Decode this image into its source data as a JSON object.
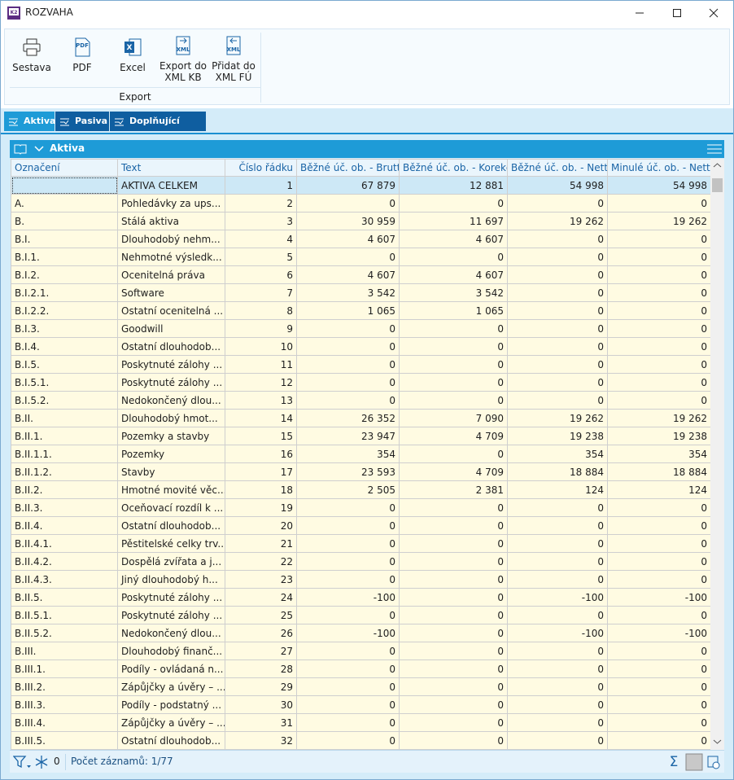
{
  "window": {
    "title": "ROZVAHA"
  },
  "toolbar": {
    "buttons": [
      [
        "Sestava"
      ],
      [
        "PDF"
      ],
      [
        "Excel"
      ],
      [
        "Export do",
        "XML KB"
      ],
      [
        "Přidat do",
        "XML FÚ"
      ]
    ],
    "group": "Export"
  },
  "tabs": [
    "Aktiva",
    "Pasiva",
    "Doplňující údaje"
  ],
  "panel": {
    "title": "Aktiva"
  },
  "table": {
    "columns": [
      "Označení",
      "Text",
      "Číslo řádku",
      "Běžné úč. ob. - Brutto",
      "Běžné úč. ob. - Korekce",
      "Běžné úč. ob. - Netto",
      "Minulé úč. ob. - Netto"
    ],
    "rows": [
      [
        "",
        "AKTIVA CELKEM",
        "1",
        "67 879",
        "12 881",
        "54 998",
        "54 998"
      ],
      [
        "A.",
        "Pohledávky za ups...",
        "2",
        "0",
        "0",
        "0",
        "0"
      ],
      [
        "B.",
        "Stálá aktiva",
        "3",
        "30 959",
        "11 697",
        "19 262",
        "19 262"
      ],
      [
        "B.I.",
        "Dlouhodobý nehm...",
        "4",
        "4 607",
        "4 607",
        "0",
        "0"
      ],
      [
        "B.I.1.",
        "Nehmotné výsledk...",
        "5",
        "0",
        "0",
        "0",
        "0"
      ],
      [
        "B.I.2.",
        "Ocenitelná práva",
        "6",
        "4 607",
        "4 607",
        "0",
        "0"
      ],
      [
        "B.I.2.1.",
        "Software",
        "7",
        "3 542",
        "3 542",
        "0",
        "0"
      ],
      [
        "B.I.2.2.",
        "Ostatní ocenitelná ...",
        "8",
        "1 065",
        "1 065",
        "0",
        "0"
      ],
      [
        "B.I.3.",
        "Goodwill",
        "9",
        "0",
        "0",
        "0",
        "0"
      ],
      [
        "B.I.4.",
        "Ostatní dlouhodob...",
        "10",
        "0",
        "0",
        "0",
        "0"
      ],
      [
        "B.I.5.",
        "Poskytnuté zálohy ...",
        "11",
        "0",
        "0",
        "0",
        "0"
      ],
      [
        "B.I.5.1.",
        "Poskytnuté zálohy ...",
        "12",
        "0",
        "0",
        "0",
        "0"
      ],
      [
        "B.I.5.2.",
        "Nedokončený dlou...",
        "13",
        "0",
        "0",
        "0",
        "0"
      ],
      [
        "B.II.",
        "Dlouhodobý hmot...",
        "14",
        "26 352",
        "7 090",
        "19 262",
        "19 262"
      ],
      [
        "B.II.1.",
        "Pozemky a stavby",
        "15",
        "23 947",
        "4 709",
        "19 238",
        "19 238"
      ],
      [
        "B.II.1.1.",
        "Pozemky",
        "16",
        "354",
        "0",
        "354",
        "354"
      ],
      [
        "B.II.1.2.",
        "Stavby",
        "17",
        "23 593",
        "4 709",
        "18 884",
        "18 884"
      ],
      [
        "B.II.2.",
        "Hmotné movité věc...",
        "18",
        "2 505",
        "2 381",
        "124",
        "124"
      ],
      [
        "B.II.3.",
        "Oceňovací rozdíl k ...",
        "19",
        "0",
        "0",
        "0",
        "0"
      ],
      [
        "B.II.4.",
        "Ostatní dlouhodob...",
        "20",
        "0",
        "0",
        "0",
        "0"
      ],
      [
        "B.II.4.1.",
        "Pěstitelské celky trv...",
        "21",
        "0",
        "0",
        "0",
        "0"
      ],
      [
        "B.II.4.2.",
        "Dospělá zvířata a j...",
        "22",
        "0",
        "0",
        "0",
        "0"
      ],
      [
        "B.II.4.3.",
        "Jiný dlouhodobý h...",
        "23",
        "0",
        "0",
        "0",
        "0"
      ],
      [
        "B.II.5.",
        "Poskytnuté zálohy ...",
        "24",
        "-100",
        "0",
        "-100",
        "-100"
      ],
      [
        "B.II.5.1.",
        "Poskytnuté zálohy ...",
        "25",
        "0",
        "0",
        "0",
        "0"
      ],
      [
        "B.II.5.2.",
        "Nedokončený dlou...",
        "26",
        "-100",
        "0",
        "-100",
        "-100"
      ],
      [
        "B.III.",
        "Dlouhodobý finanč...",
        "27",
        "0",
        "0",
        "0",
        "0"
      ],
      [
        "B.III.1.",
        "Podíly - ovládaná n...",
        "28",
        "0",
        "0",
        "0",
        "0"
      ],
      [
        "B.III.2.",
        "Zápůjčky a úvěry – ...",
        "29",
        "0",
        "0",
        "0",
        "0"
      ],
      [
        "B.III.3.",
        "Podíly - podstatný ...",
        "30",
        "0",
        "0",
        "0",
        "0"
      ],
      [
        "B.III.4.",
        "Zápůjčky a úvěry – ...",
        "31",
        "0",
        "0",
        "0",
        "0"
      ],
      [
        "B.III.5.",
        "Ostatní dlouhodob...",
        "32",
        "0",
        "0",
        "0",
        "0"
      ]
    ]
  },
  "status": {
    "filter_count": "0",
    "records": "Počet záznamů: 1/77"
  }
}
